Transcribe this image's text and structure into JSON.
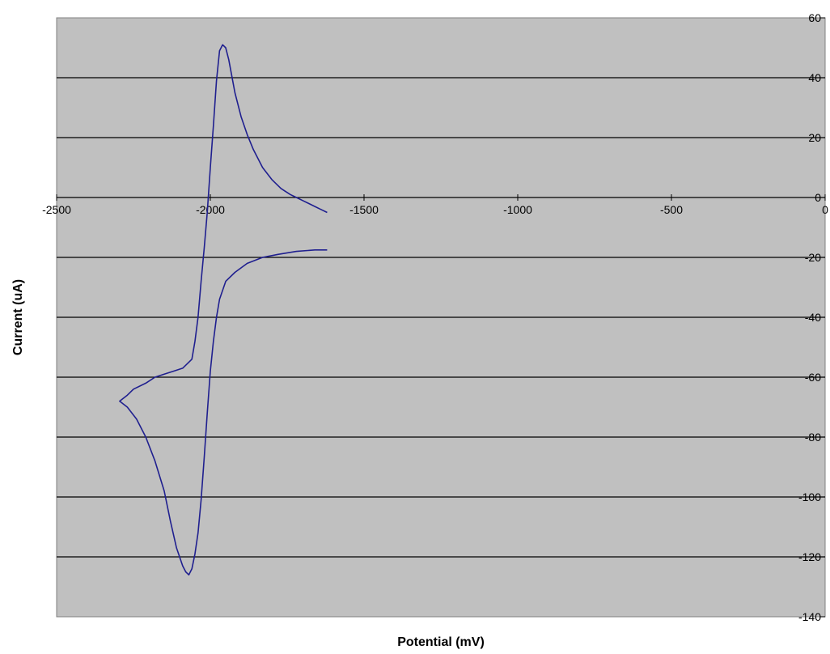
{
  "chart_data": {
    "type": "line",
    "title": "",
    "xlabel": "Potential (mV)",
    "ylabel": "Current (uA)",
    "xlim": [
      -2500,
      0
    ],
    "ylim": [
      -140,
      60
    ],
    "x_ticks": [
      -2500,
      -2000,
      -1500,
      -1000,
      -500,
      0
    ],
    "x_tick_labels": [
      "-2500",
      "-2000",
      "-1500",
      "-1000",
      "-500",
      "0"
    ],
    "y_ticks": [
      60,
      40,
      20,
      0,
      -20,
      -40,
      -60,
      -80,
      -100,
      -120,
      -140
    ],
    "y_tick_labels": [
      "60",
      "40",
      "20",
      "0",
      "-20",
      "-40",
      "-60",
      "-80",
      "-100",
      "-120",
      "-140"
    ],
    "grid": "horizontal",
    "plot_background": "#c0c0c0",
    "gridline_color": "#000000",
    "series": [
      {
        "color": "#1f1f8f",
        "points": [
          [
            -1620,
            -5
          ],
          [
            -1640,
            -4
          ],
          [
            -1660,
            -3
          ],
          [
            -1680,
            -2
          ],
          [
            -1700,
            -1
          ],
          [
            -1720,
            0
          ],
          [
            -1740,
            1
          ],
          [
            -1770,
            3
          ],
          [
            -1800,
            6
          ],
          [
            -1830,
            10
          ],
          [
            -1860,
            16
          ],
          [
            -1880,
            21
          ],
          [
            -1900,
            27
          ],
          [
            -1920,
            35
          ],
          [
            -1940,
            46
          ],
          [
            -1950,
            50
          ],
          [
            -1960,
            51
          ],
          [
            -1970,
            49
          ],
          [
            -1980,
            39
          ],
          [
            -1990,
            24
          ],
          [
            -2000,
            10
          ],
          [
            -2010,
            -5
          ],
          [
            -2020,
            -17
          ],
          [
            -2030,
            -28
          ],
          [
            -2040,
            -40
          ],
          [
            -2050,
            -48
          ],
          [
            -2060,
            -54
          ],
          [
            -2090,
            -57
          ],
          [
            -2120,
            -58
          ],
          [
            -2150,
            -59
          ],
          [
            -2180,
            -60
          ],
          [
            -2210,
            -62
          ],
          [
            -2250,
            -64
          ],
          [
            -2270,
            -66
          ],
          [
            -2295,
            -68
          ],
          [
            -2270,
            -70
          ],
          [
            -2240,
            -74
          ],
          [
            -2210,
            -80
          ],
          [
            -2180,
            -88
          ],
          [
            -2150,
            -98
          ],
          [
            -2130,
            -108
          ],
          [
            -2110,
            -117
          ],
          [
            -2090,
            -123
          ],
          [
            -2080,
            -125
          ],
          [
            -2070,
            -126
          ],
          [
            -2060,
            -124
          ],
          [
            -2050,
            -119
          ],
          [
            -2040,
            -112
          ],
          [
            -2030,
            -101
          ],
          [
            -2020,
            -87
          ],
          [
            -2010,
            -72
          ],
          [
            -2000,
            -58
          ],
          [
            -1990,
            -48
          ],
          [
            -1980,
            -40
          ],
          [
            -1970,
            -34
          ],
          [
            -1950,
            -28
          ],
          [
            -1920,
            -25
          ],
          [
            -1880,
            -22
          ],
          [
            -1830,
            -20
          ],
          [
            -1780,
            -19
          ],
          [
            -1720,
            -18
          ],
          [
            -1660,
            -17.5
          ],
          [
            -1620,
            -17.5
          ]
        ]
      }
    ]
  }
}
